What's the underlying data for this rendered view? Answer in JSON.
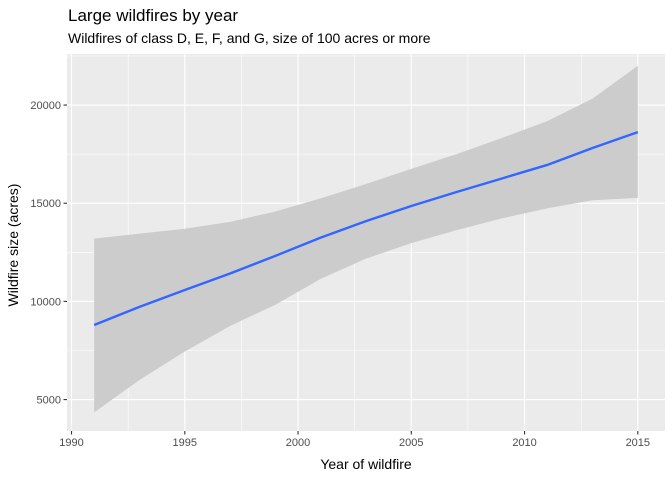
{
  "chart_data": {
    "type": "line",
    "title": "Large wildfires by year",
    "subtitle": "Wildfires of class D, E, F, and G, size of 100 acres or more",
    "xlabel": "Year of wildfire",
    "ylabel": "Wildfire size (acres)",
    "xlim": [
      1989.8,
      2016.2
    ],
    "ylim": [
      3400,
      22600
    ],
    "x_ticks": [
      1990,
      1995,
      2000,
      2005,
      2010,
      2015
    ],
    "x_tick_labels": [
      "1990",
      "1995",
      "2000",
      "2005",
      "2010",
      "2015"
    ],
    "y_ticks": [
      5000,
      10000,
      15000,
      20000
    ],
    "y_tick_labels": [
      "5000",
      "10000",
      "15000",
      "20000"
    ],
    "grid": true,
    "legend": "none",
    "series": [
      {
        "x": [
          1991,
          1993,
          1995,
          1997,
          1999,
          2001,
          2003,
          2005,
          2007,
          2009,
          2011,
          2013,
          2015
        ],
        "values": [
          8800,
          9720,
          10580,
          11420,
          12320,
          13250,
          14090,
          14860,
          15570,
          16260,
          16950,
          17810,
          18620
        ],
        "ci_lower": [
          4350,
          6000,
          7450,
          8750,
          9830,
          11150,
          12180,
          12970,
          13630,
          14230,
          14740,
          15150,
          15270
        ],
        "ci_upper": [
          13200,
          13450,
          13700,
          14050,
          14580,
          15250,
          15980,
          16750,
          17500,
          18320,
          19180,
          20330,
          22000
        ],
        "color": "#3366FF",
        "band_color": "#cccccc"
      }
    ]
  }
}
